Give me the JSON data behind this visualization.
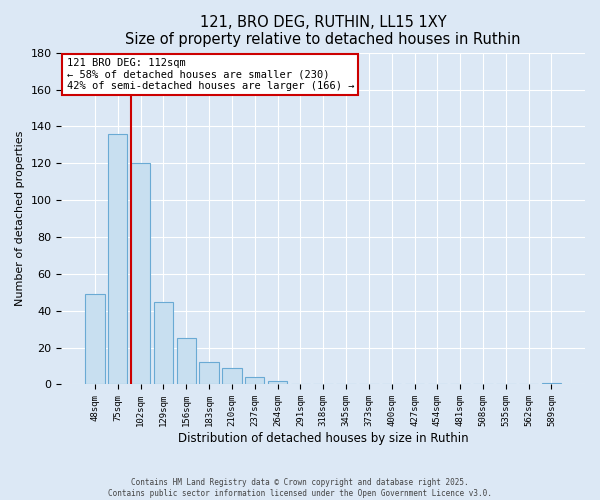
{
  "title": "121, BRO DEG, RUTHIN, LL15 1XY",
  "subtitle": "Size of property relative to detached houses in Ruthin",
  "xlabel": "Distribution of detached houses by size in Ruthin",
  "ylabel": "Number of detached properties",
  "bar_labels": [
    "48sqm",
    "75sqm",
    "102sqm",
    "129sqm",
    "156sqm",
    "183sqm",
    "210sqm",
    "237sqm",
    "264sqm",
    "291sqm",
    "318sqm",
    "345sqm",
    "373sqm",
    "400sqm",
    "427sqm",
    "454sqm",
    "481sqm",
    "508sqm",
    "535sqm",
    "562sqm",
    "589sqm"
  ],
  "bar_values": [
    49,
    136,
    120,
    45,
    25,
    12,
    9,
    4,
    2,
    0,
    0,
    0,
    0,
    0,
    0,
    0,
    0,
    0,
    0,
    0,
    1
  ],
  "bar_color": "#c8dff0",
  "bar_edge_color": "#6aaad4",
  "vline_color": "#cc0000",
  "annotation_title": "121 BRO DEG: 112sqm",
  "annotation_line1": "← 58% of detached houses are smaller (230)",
  "annotation_line2": "42% of semi-detached houses are larger (166) →",
  "ylim": [
    0,
    180
  ],
  "yticks": [
    0,
    20,
    40,
    60,
    80,
    100,
    120,
    140,
    160,
    180
  ],
  "bg_color": "#dce8f5",
  "grid_color": "#c0d0e0",
  "footer_line1": "Contains HM Land Registry data © Crown copyright and database right 2025.",
  "footer_line2": "Contains public sector information licensed under the Open Government Licence v3.0."
}
